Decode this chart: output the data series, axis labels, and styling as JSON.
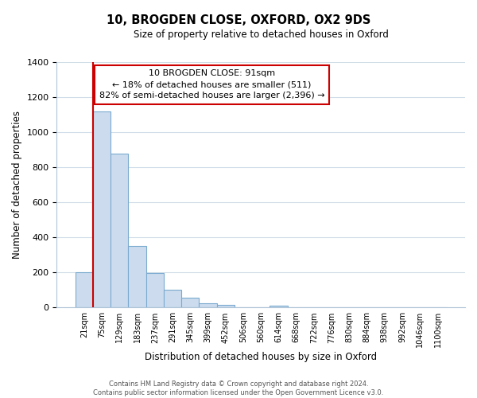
{
  "title": "10, BROGDEN CLOSE, OXFORD, OX2 9DS",
  "subtitle": "Size of property relative to detached houses in Oxford",
  "xlabel": "Distribution of detached houses by size in Oxford",
  "ylabel": "Number of detached properties",
  "bar_labels": [
    "21sqm",
    "75sqm",
    "129sqm",
    "183sqm",
    "237sqm",
    "291sqm",
    "345sqm",
    "399sqm",
    "452sqm",
    "506sqm",
    "560sqm",
    "614sqm",
    "668sqm",
    "722sqm",
    "776sqm",
    "830sqm",
    "884sqm",
    "938sqm",
    "992sqm",
    "1046sqm",
    "1100sqm"
  ],
  "bar_values": [
    200,
    1120,
    880,
    350,
    195,
    100,
    57,
    22,
    15,
    0,
    0,
    12,
    0,
    0,
    0,
    0,
    0,
    0,
    0,
    0,
    0
  ],
  "bar_color": "#ccdcee",
  "bar_edge_color": "#7aaacf",
  "property_line_bar_index": 1,
  "property_line_color": "#cc0000",
  "ylim": [
    0,
    1400
  ],
  "yticks": [
    0,
    200,
    400,
    600,
    800,
    1000,
    1200,
    1400
  ],
  "annotation_title": "10 BROGDEN CLOSE: 91sqm",
  "annotation_line1": "← 18% of detached houses are smaller (511)",
  "annotation_line2": "82% of semi-detached houses are larger (2,396) →",
  "annotation_box_color": "#ffffff",
  "annotation_box_edge": "#cc0000",
  "footer_line1": "Contains HM Land Registry data © Crown copyright and database right 2024.",
  "footer_line2": "Contains public sector information licensed under the Open Government Licence v3.0.",
  "background_color": "#ffffff",
  "grid_color": "#d0dde8"
}
